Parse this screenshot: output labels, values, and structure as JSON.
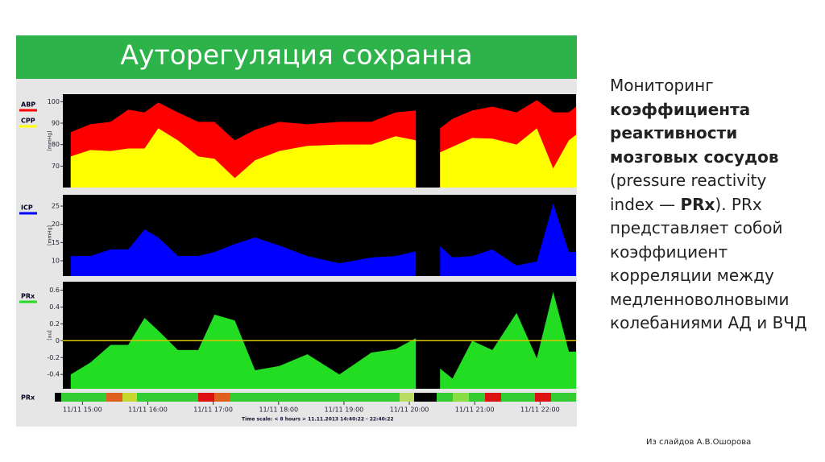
{
  "slide_title": "Ауторегуляция сохранна",
  "description": [
    {
      "text": "Мониторинг ",
      "bold": false
    },
    {
      "text": "коэффициента реактивности мозговых сосудов",
      "bold": true
    },
    {
      "text": " (pressure reactivity index — ",
      "bold": false
    },
    {
      "text": "PRx",
      "bold": true
    },
    {
      "text": "). PRx представляет собой коэффициент корреляции между медленноволновыми колебаниями АД и ВЧД",
      "bold": false
    }
  ],
  "credit": "Из слайдов А.В.Ошорова",
  "status_bar_label": "PRx",
  "time_scale": "Time scale: < 8 hours > 11.11.2013 14:40:22 - 22:40:22",
  "chart_data": [
    {
      "type": "area",
      "y_label": "[mmHg]",
      "x": [
        14.82,
        15.12,
        15.43,
        15.7,
        15.95,
        16.16,
        16.46,
        16.77,
        17.02,
        17.33,
        17.64,
        18.01,
        18.44,
        18.93,
        19.42,
        19.79,
        20.1,
        20.3,
        20.47,
        20.66,
        20.96,
        21.27,
        21.64,
        21.95,
        22.2,
        22.44,
        22.55
      ],
      "xlim": [
        14.7,
        22.55
      ],
      "ylim": [
        60,
        103.5
      ],
      "yticks": [
        100,
        90,
        80,
        70
      ],
      "series": [
        {
          "name": "ABP",
          "color": "#ff0000",
          "values": [
            85.8,
            89.5,
            90.6,
            96.3,
            95,
            99.6,
            95,
            90.6,
            90.6,
            82,
            86.9,
            90.6,
            89.5,
            90.6,
            90.6,
            95,
            95.9,
            null,
            87.6,
            92,
            95.9,
            97.7,
            95,
            100.7,
            95,
            95,
            97.7
          ]
        },
        {
          "name": "CPP",
          "color": "#ffff00",
          "values": [
            74.5,
            77.5,
            77,
            78.2,
            78.2,
            87.6,
            82,
            74.5,
            73.4,
            64.4,
            72.7,
            77,
            79.4,
            80,
            80,
            83.9,
            82,
            null,
            76.4,
            79,
            83.1,
            82.8,
            80,
            87.6,
            68.9,
            82,
            84.6
          ]
        }
      ]
    },
    {
      "type": "area",
      "y_label": "[mmHg]",
      "x": [
        14.82,
        15.12,
        15.43,
        15.7,
        15.95,
        16.16,
        16.46,
        16.77,
        17.02,
        17.33,
        17.64,
        18.01,
        18.44,
        18.93,
        19.42,
        19.79,
        20.1,
        20.3,
        20.47,
        20.66,
        20.96,
        21.27,
        21.64,
        21.95,
        22.2,
        22.44,
        22.55
      ],
      "xlim": [
        14.7,
        22.55
      ],
      "ylim": [
        5.8,
        28.1
      ],
      "yticks": [
        25,
        20,
        15,
        10
      ],
      "series": [
        {
          "name": "ICP",
          "color": "#0000ff",
          "values": [
            11.3,
            11.3,
            13.1,
            13.1,
            18.6,
            16.4,
            11.3,
            11.3,
            12.4,
            14.6,
            16.4,
            14.2,
            11.3,
            9.3,
            10.9,
            11.3,
            12.6,
            null,
            14,
            10.9,
            11.3,
            13.1,
            8.7,
            9.8,
            25.7,
            12.4,
            12.4
          ]
        }
      ]
    },
    {
      "type": "area",
      "y_label": "[au]",
      "x": [
        14.82,
        15.12,
        15.43,
        15.7,
        15.95,
        16.16,
        16.46,
        16.77,
        17.02,
        17.33,
        17.64,
        18.01,
        18.44,
        18.93,
        19.42,
        19.79,
        20.1,
        20.3,
        20.47,
        20.66,
        20.96,
        21.27,
        21.64,
        21.95,
        22.2,
        22.44,
        22.55
      ],
      "xlim": [
        14.7,
        22.55
      ],
      "ylim": [
        -0.57,
        0.7
      ],
      "yticks": [
        0.6,
        0.4,
        0.2,
        0,
        -0.2,
        -0.4
      ],
      "reference_line": 0,
      "reference_color": "#d8c400",
      "xticks": [
        {
          "value": 15,
          "label": "11/11 15:00"
        },
        {
          "value": 16,
          "label": "11/11 16:00"
        },
        {
          "value": 17,
          "label": "11/11 17:00"
        },
        {
          "value": 18,
          "label": "11/11 18:00"
        },
        {
          "value": 19,
          "label": "11/11 19:00"
        },
        {
          "value": 20,
          "label": "11/11 20:00"
        },
        {
          "value": 21,
          "label": "11/11 21:00"
        },
        {
          "value": 22,
          "label": "11/11 22:00"
        }
      ],
      "series": [
        {
          "name": "PRx",
          "color": "#22dd22",
          "values": [
            -0.4,
            -0.26,
            -0.05,
            -0.05,
            0.27,
            0.12,
            -0.11,
            -0.11,
            0.31,
            0.24,
            -0.35,
            -0.3,
            -0.16,
            -0.4,
            -0.14,
            -0.1,
            0.03,
            null,
            -0.33,
            -0.45,
            0,
            -0.11,
            0.33,
            -0.21,
            0.58,
            -0.13,
            -0.13
          ]
        }
      ]
    }
  ]
}
